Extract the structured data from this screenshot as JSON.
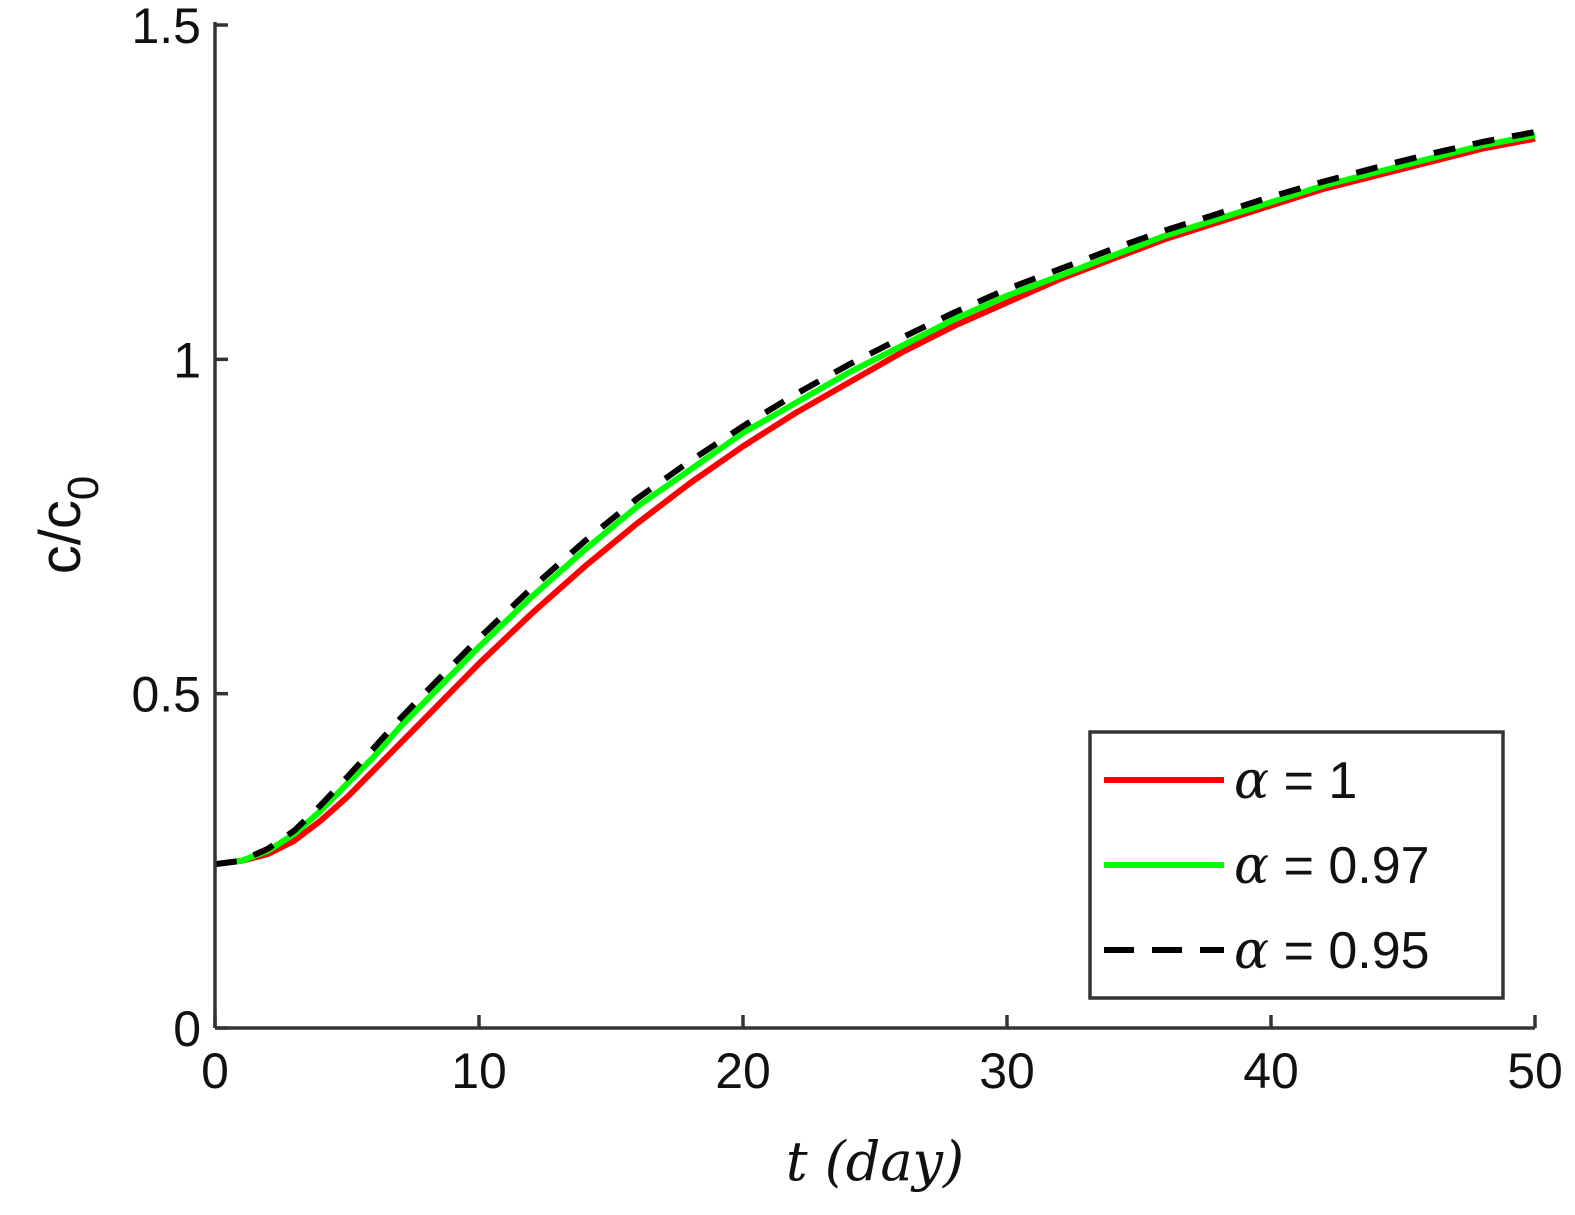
{
  "chart_data": {
    "type": "line",
    "title": "",
    "xlabel": "t (day)",
    "ylabel": {
      "base": "c/c",
      "subscript": "0"
    },
    "xlim": [
      0,
      50
    ],
    "ylim": [
      0,
      1.5
    ],
    "xticks": [
      0,
      10,
      20,
      30,
      40,
      50
    ],
    "xtick_labels": [
      "0",
      "10",
      "20",
      "30",
      "40",
      "50"
    ],
    "yticks": [
      0,
      0.5,
      1,
      1.5
    ],
    "ytick_labels": [
      "0",
      "0.5",
      "1",
      "1.5"
    ],
    "grid": false,
    "legend_position": "bottom-right",
    "x": [
      0,
      1,
      2,
      3,
      4,
      5,
      6,
      7,
      8,
      9,
      10,
      12,
      14,
      16,
      18,
      20,
      22,
      24,
      26,
      28,
      30,
      32,
      34,
      36,
      38,
      40,
      42,
      44,
      46,
      48,
      50
    ],
    "series": [
      {
        "name": "α = 1",
        "symbol": "α",
        "value_label": "= 1",
        "color": "#ff0000",
        "dash": "solid",
        "values": [
          0.245,
          0.25,
          0.26,
          0.28,
          0.31,
          0.345,
          0.385,
          0.425,
          0.465,
          0.505,
          0.545,
          0.62,
          0.69,
          0.755,
          0.815,
          0.87,
          0.92,
          0.965,
          1.01,
          1.05,
          1.085,
          1.12,
          1.15,
          1.18,
          1.205,
          1.23,
          1.255,
          1.275,
          1.295,
          1.315,
          1.33
        ]
      },
      {
        "name": "α = 0.97",
        "symbol": "α",
        "value_label": "= 0.97",
        "color": "#00ff00",
        "dash": "solid",
        "values": [
          0.245,
          0.25,
          0.265,
          0.29,
          0.325,
          0.365,
          0.405,
          0.45,
          0.49,
          0.53,
          0.57,
          0.645,
          0.715,
          0.78,
          0.835,
          0.89,
          0.935,
          0.98,
          1.02,
          1.06,
          1.095,
          1.125,
          1.155,
          1.185,
          1.21,
          1.235,
          1.26,
          1.28,
          1.3,
          1.32,
          1.335
        ]
      },
      {
        "name": "α = 0.95",
        "symbol": "α",
        "value_label": "= 0.95",
        "color": "#000000",
        "dash": "dashed",
        "values": [
          0.245,
          0.25,
          0.268,
          0.295,
          0.333,
          0.375,
          0.418,
          0.462,
          0.503,
          0.543,
          0.583,
          0.658,
          0.728,
          0.792,
          0.848,
          0.9,
          0.948,
          0.992,
          1.032,
          1.07,
          1.105,
          1.135,
          1.165,
          1.193,
          1.218,
          1.243,
          1.266,
          1.287,
          1.307,
          1.325,
          1.34
        ]
      }
    ]
  }
}
